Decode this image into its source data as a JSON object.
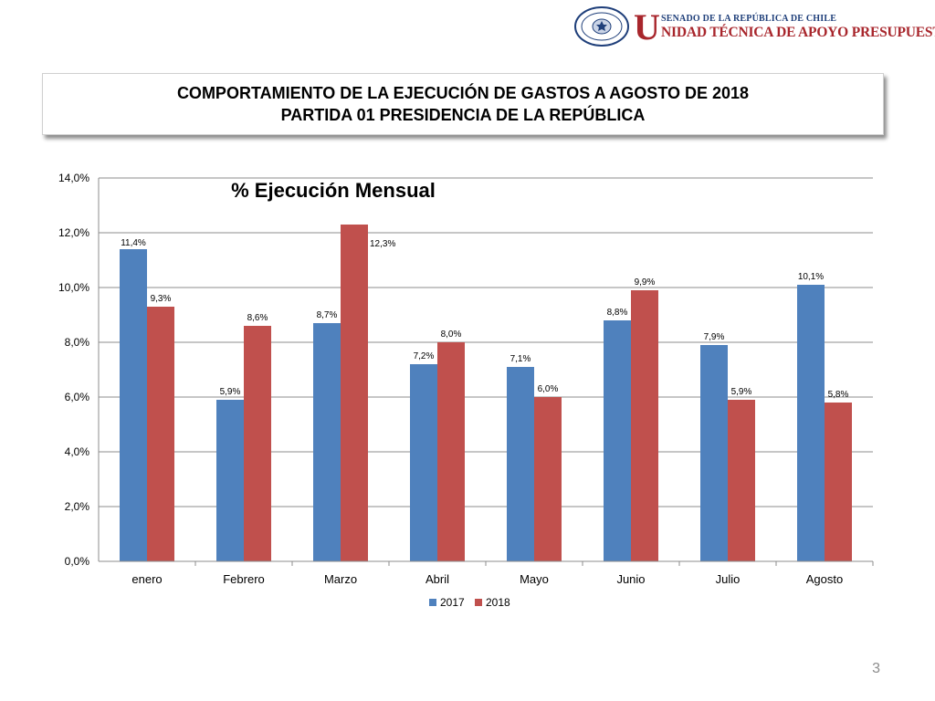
{
  "header": {
    "logo_seal_text": "REPÚBLICA DE CHILE SENADO",
    "logo_initial": "U",
    "logo_top": "SENADO DE LA REPÚBLICA DE CHILE",
    "logo_bottom": "NIDAD TÉCNICA DE APOYO PRESUPUESTARIO"
  },
  "title": {
    "line1": "COMPORTAMIENTO DE LA EJECUCIÓN DE GASTOS A AGOSTO DE 2018",
    "line2": "PARTIDA 01 PRESIDENCIA DE LA REPÚBLICA"
  },
  "page_number": "3",
  "colors": {
    "series_2017": "#4f81bd",
    "series_2018": "#c0504d",
    "grid": "#8c8c8c"
  },
  "chart_data": {
    "type": "bar",
    "title": "% Ejecución Mensual",
    "categories": [
      "enero",
      "Febrero",
      "Marzo",
      "Abril",
      "Mayo",
      "Junio",
      "Julio",
      "Agosto"
    ],
    "series": [
      {
        "name": "2017",
        "values": [
          11.4,
          5.9,
          8.7,
          7.2,
          7.1,
          8.8,
          7.9,
          10.1
        ],
        "labels": [
          "11,4%",
          "5,9%",
          "8,7%",
          "7,2%",
          "7,1%",
          "8,8%",
          "7,9%",
          "10,1%"
        ]
      },
      {
        "name": "2018",
        "values": [
          9.3,
          8.6,
          12.3,
          8.0,
          6.0,
          9.9,
          5.9,
          5.8
        ],
        "labels": [
          "9,3%",
          "8,6%",
          "12,3%",
          "8,0%",
          "6,0%",
          "9,9%",
          "5,9%",
          "5,8%"
        ]
      }
    ],
    "ylim": [
      0,
      14
    ],
    "yticks": [
      0,
      2,
      4,
      6,
      8,
      10,
      12,
      14
    ],
    "ytick_labels": [
      "0,0%",
      "2,0%",
      "4,0%",
      "6,0%",
      "8,0%",
      "10,0%",
      "12,0%",
      "14,0%"
    ],
    "grid": true,
    "legend_position": "bottom"
  }
}
